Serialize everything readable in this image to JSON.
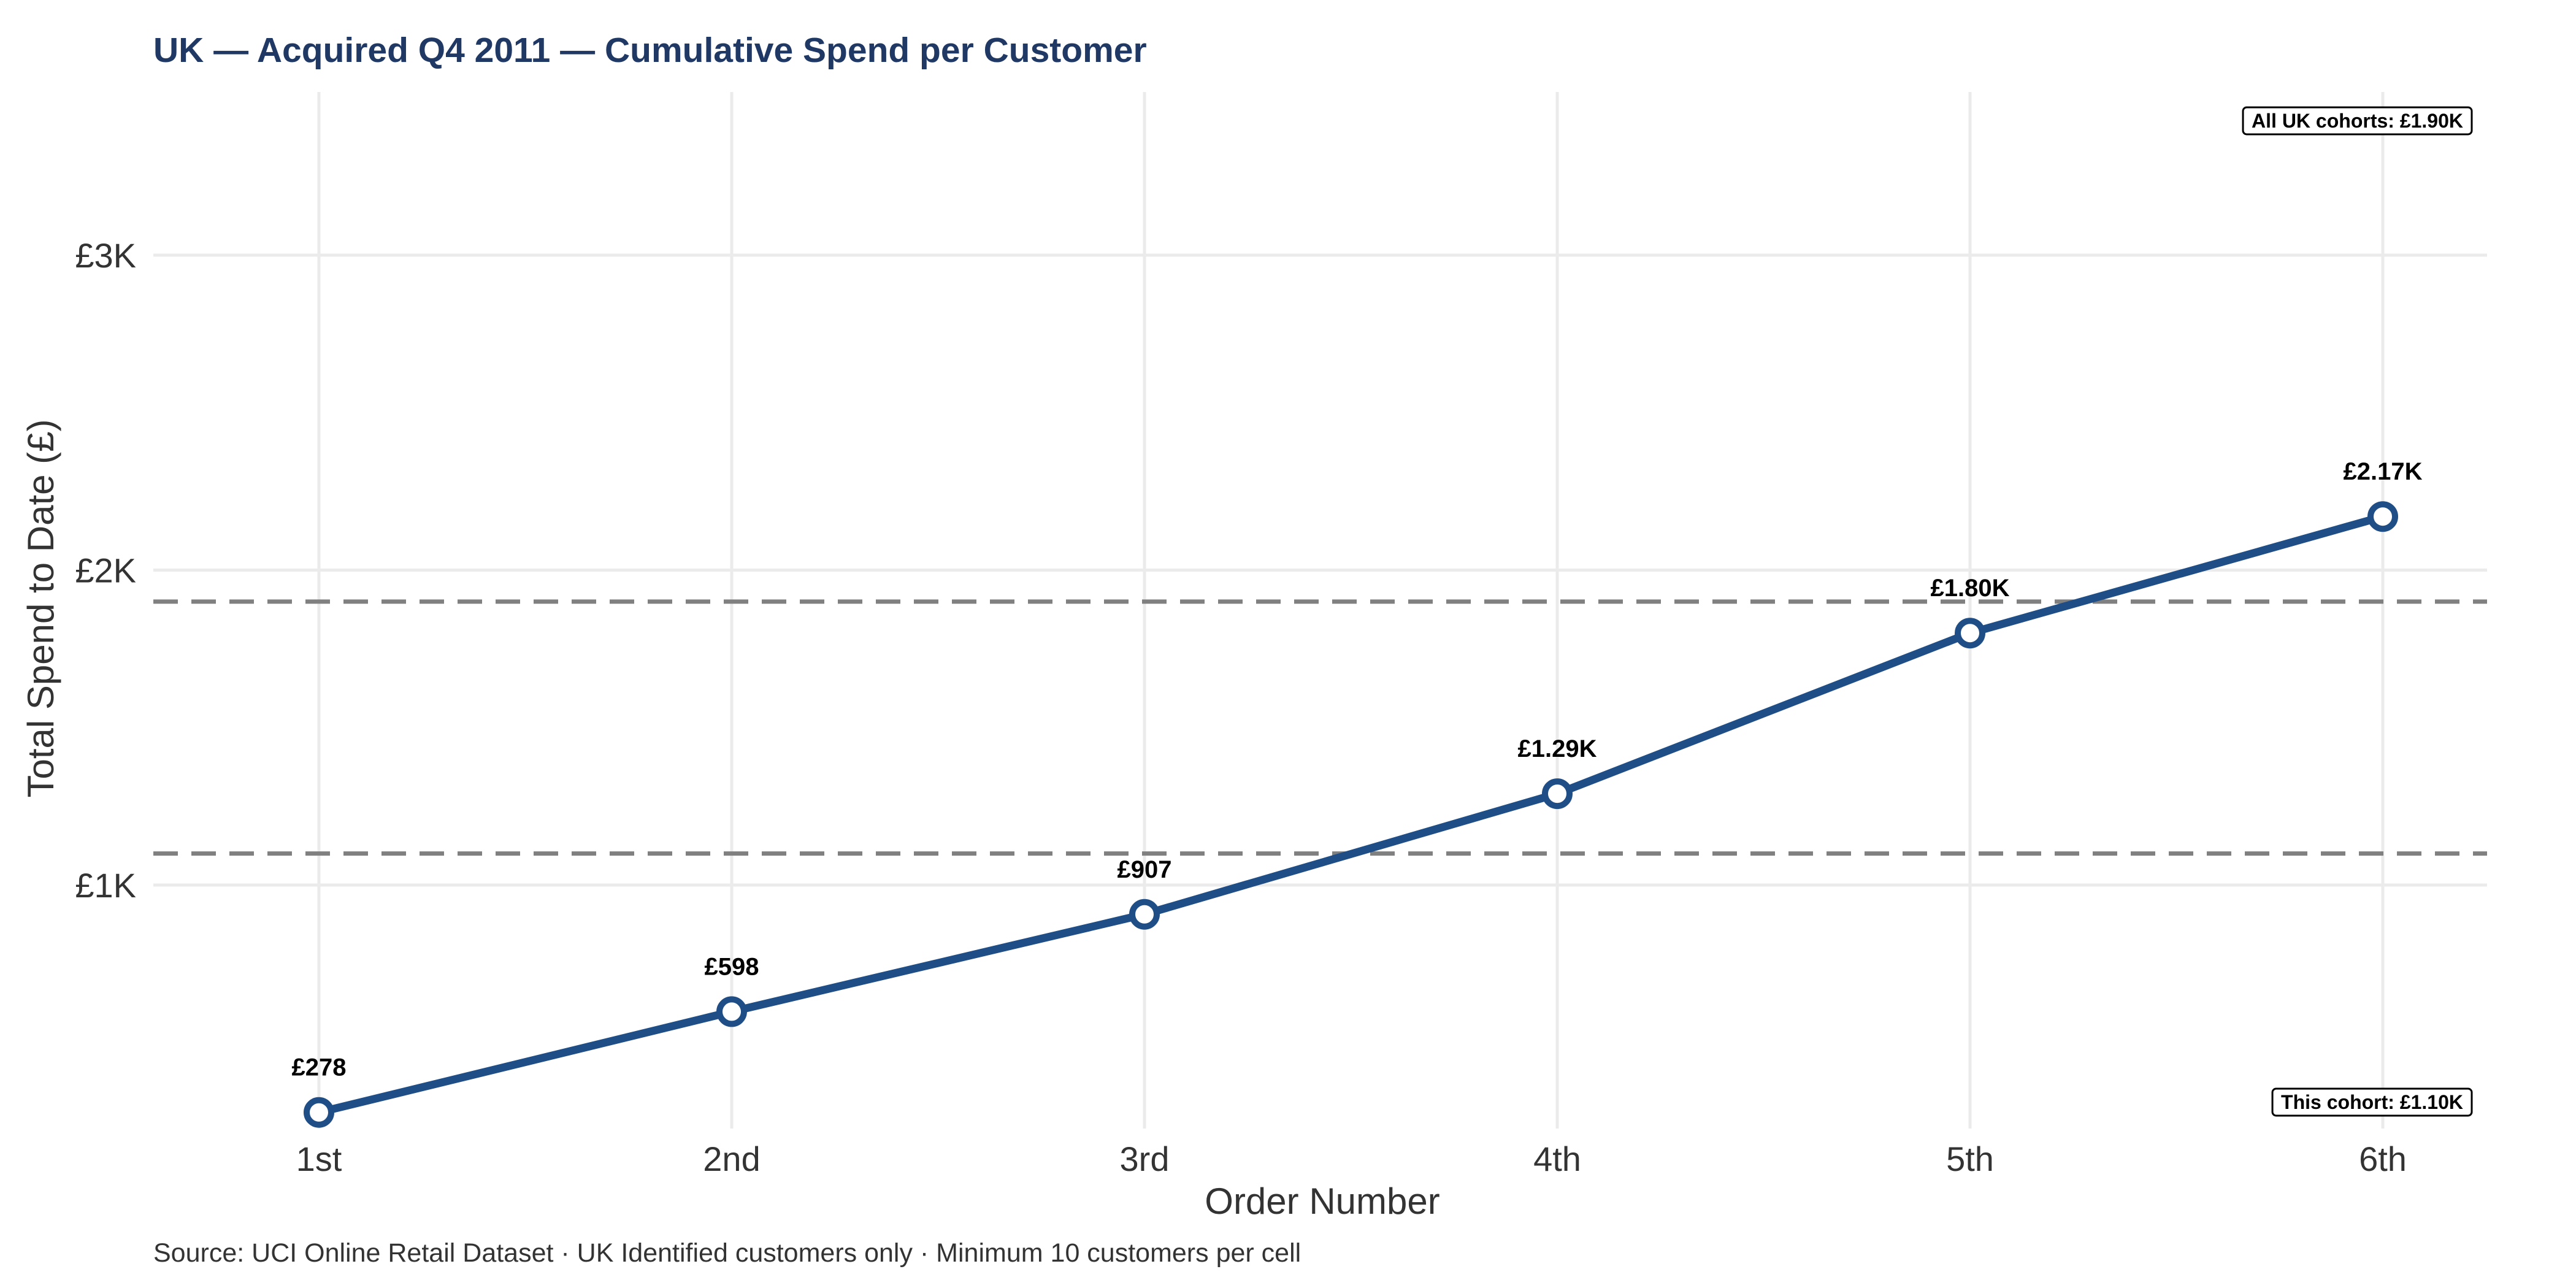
{
  "chart_data": {
    "type": "line",
    "title": "UK — Acquired Q4 2011 — Cumulative Spend per Customer",
    "xlabel": "Order Number",
    "ylabel": "Total Spend to Date (£)",
    "categories": [
      "1st",
      "2nd",
      "3rd",
      "4th",
      "5th",
      "6th"
    ],
    "series": [
      {
        "values": [
          278,
          598,
          907,
          1290,
          1800,
          2170
        ],
        "labels": [
          "£278",
          "£598",
          "£907",
          "£1.29K",
          "£1.80K",
          "£2.17K"
        ]
      }
    ],
    "ylim": [
      200,
      3500
    ],
    "yticks": [
      1000,
      2000,
      3000
    ],
    "ytick_labels": [
      "£1K",
      "£2K",
      "£3K"
    ],
    "reference_lines": [
      {
        "value": 1900,
        "label": "All UK cohorts: £1.90K",
        "label_position": "top-right"
      },
      {
        "value": 1100,
        "label": "This cohort: £1.10K",
        "label_position": "bottom-right"
      }
    ],
    "grid": true,
    "line_color": "#1f4e87",
    "reference_line_color": "#808080",
    "caption": "Source: UCI Online Retail Dataset · UK Identified customers only · Minimum 10 customers per cell"
  }
}
